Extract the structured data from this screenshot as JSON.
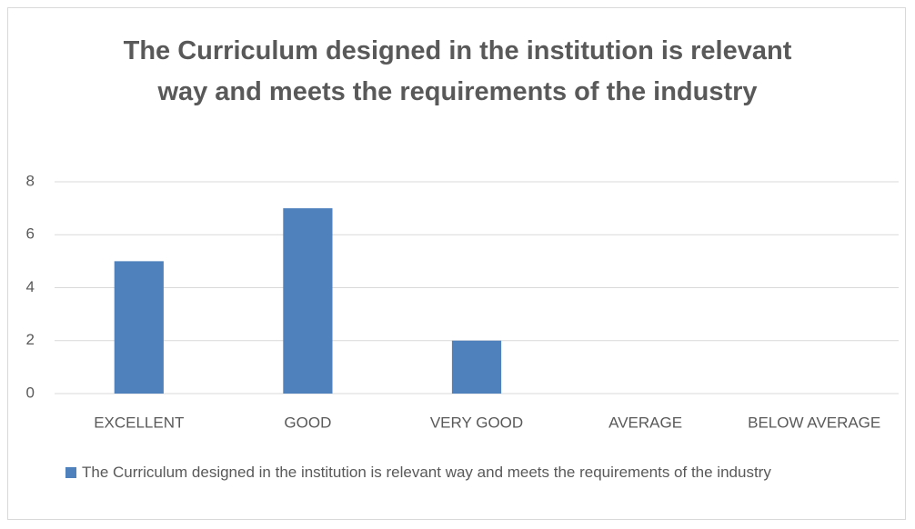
{
  "chart_data": {
    "type": "bar",
    "title": "The Curriculum designed in the institution is relevant way and meets the requirements of the industry",
    "categories": [
      "EXCELLENT",
      "GOOD",
      "VERY GOOD",
      "AVERAGE",
      "BELOW AVERAGE"
    ],
    "series": [
      {
        "name": "The Curriculum designed in the institution is relevant way and meets the requirements of the industry",
        "color": "#4f81bd",
        "values": [
          5,
          7,
          2,
          0,
          0
        ]
      }
    ],
    "ylim": [
      0,
      8
    ],
    "yticks": [
      0,
      2,
      4,
      6,
      8
    ],
    "grid": true,
    "legend": "bottom"
  }
}
